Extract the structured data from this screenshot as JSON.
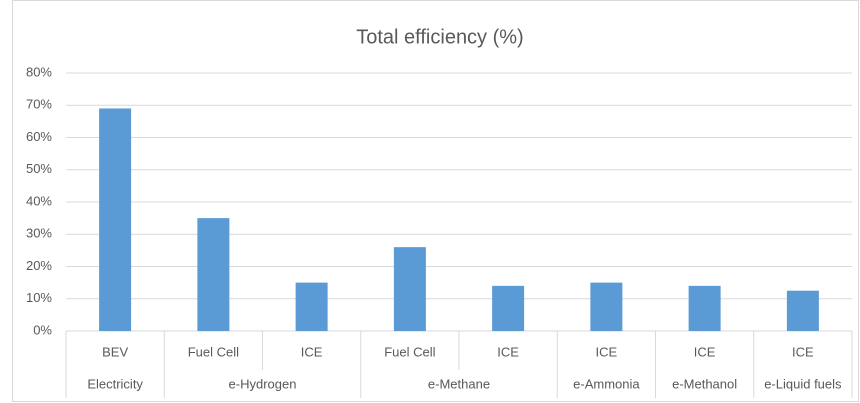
{
  "chart_data": {
    "type": "bar",
    "title": "Total efficiency (%)",
    "categories": [
      "BEV",
      "Fuel Cell",
      "ICE",
      "Fuel Cell",
      "ICE",
      "ICE",
      "ICE",
      "ICE"
    ],
    "groups": [
      "Electricity",
      "e-Hydrogen",
      null,
      "e-Methane",
      null,
      "e-Ammonia",
      "e-Methanol",
      "e-Liquid fuels"
    ],
    "values": [
      69,
      35,
      15,
      26,
      14,
      15,
      14,
      12.5
    ],
    "color": "#5b9bd5",
    "ylim": [
      0,
      80
    ],
    "yticks": [
      {
        "value": 0,
        "label": "0%"
      },
      {
        "value": 10,
        "label": "10%"
      },
      {
        "value": 20,
        "label": "20%"
      },
      {
        "value": 30,
        "label": "30%"
      },
      {
        "value": 40,
        "label": "40%"
      },
      {
        "value": 50,
        "label": "50%"
      },
      {
        "value": 60,
        "label": "60%"
      },
      {
        "value": 70,
        "label": "70%"
      },
      {
        "value": 80,
        "label": "80%"
      }
    ],
    "grid": true
  }
}
